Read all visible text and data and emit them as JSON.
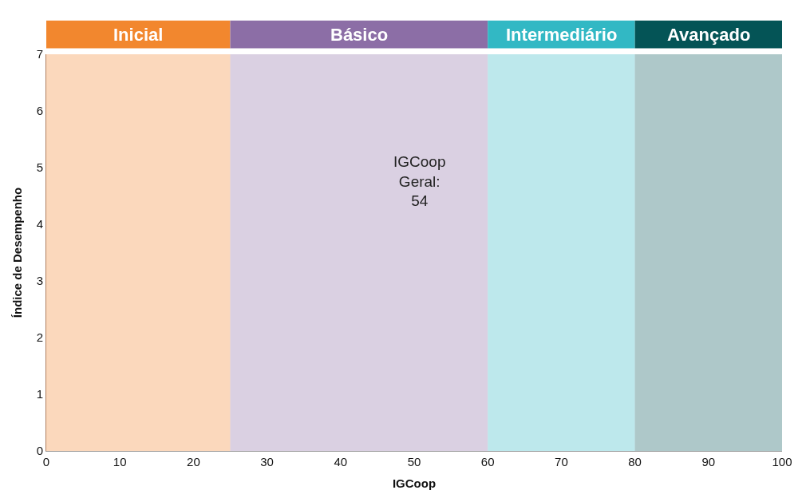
{
  "chart_data": {
    "type": "scatter",
    "xlabel": "IGCoop",
    "ylabel": "Índice de Desempenho",
    "xlim": [
      0,
      100
    ],
    "ylim": [
      0,
      7
    ],
    "xticks": [
      0,
      10,
      20,
      30,
      40,
      50,
      60,
      70,
      80,
      90,
      100
    ],
    "yticks": [
      0,
      1,
      2,
      3,
      4,
      5,
      6,
      7
    ],
    "bands": [
      {
        "axis": "x",
        "from": 0,
        "to": 25,
        "label": "Inicial",
        "color": "#f2872e"
      },
      {
        "axis": "x",
        "from": 25,
        "to": 60,
        "label": "Básico",
        "color": "#8c6ea6"
      },
      {
        "axis": "x",
        "from": 60,
        "to": 80,
        "label": "Intermediário",
        "color": "#32b8c4"
      },
      {
        "axis": "x",
        "from": 80,
        "to": 100,
        "label": "Avançado",
        "color": "#045456"
      }
    ],
    "annotations": [
      "IGCoop\nGeral:\n54"
    ]
  }
}
